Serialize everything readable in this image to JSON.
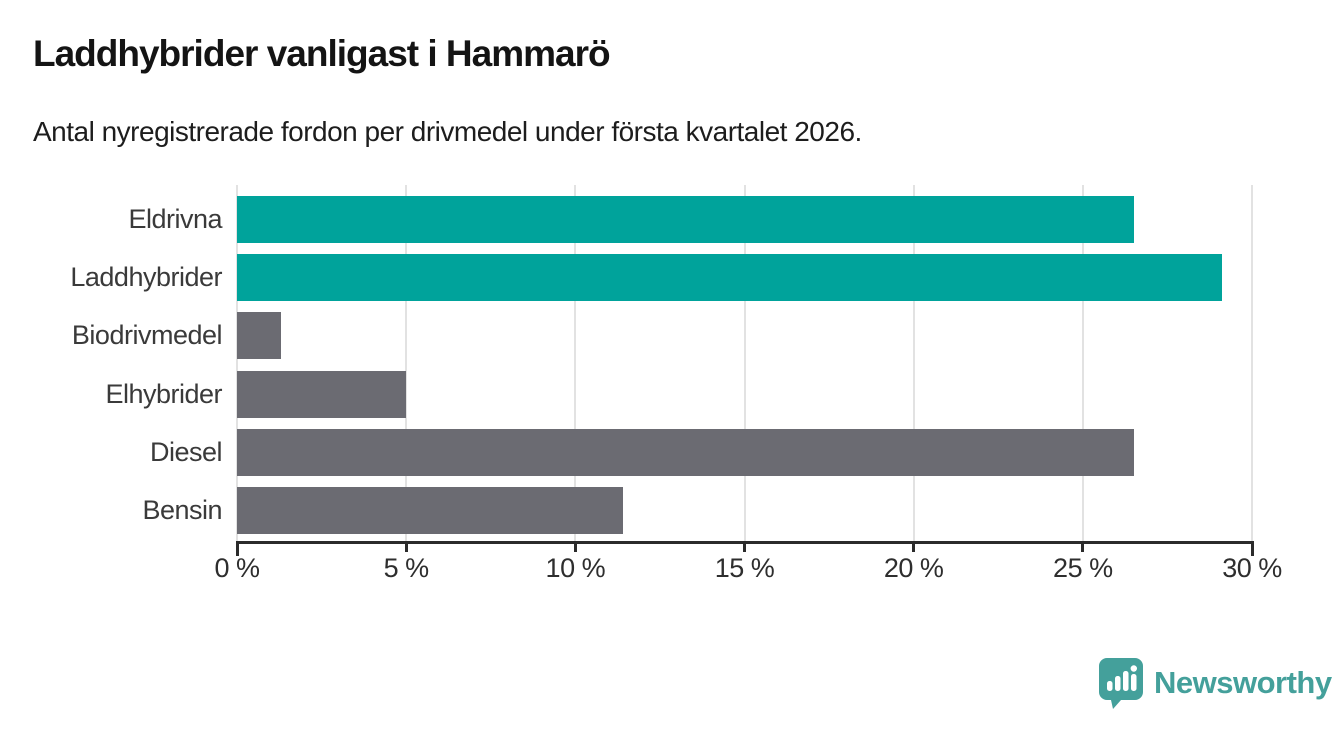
{
  "header": {
    "title": "Laddhybrider vanligast i Hammarö",
    "subtitle": "Antal nyregistrerade fordon per drivmedel under första kvartalet 2026."
  },
  "chart_data": {
    "type": "bar",
    "orientation": "horizontal",
    "title": "Laddhybrider vanligast i Hammarö",
    "subtitle": "Antal nyregistrerade fordon per drivmedel under första kvartalet 2026.",
    "categories": [
      "Eldrivna",
      "Laddhybrider",
      "Biodrivmedel",
      "Elhybrider",
      "Diesel",
      "Bensin"
    ],
    "values": [
      26.5,
      29.1,
      1.3,
      5.0,
      26.5,
      11.4
    ],
    "unit": "%",
    "xlim": [
      0,
      30
    ],
    "x_ticks": [
      0,
      5,
      10,
      15,
      20,
      25,
      30
    ],
    "x_tick_labels": [
      "0 %",
      "5 %",
      "10 %",
      "15 %",
      "20 %",
      "25 %",
      "30 %"
    ],
    "grid": true,
    "legend": false,
    "colors": {
      "highlight": "#00A39B",
      "default": "#6B6B72",
      "bar_colors": [
        "#00A39B",
        "#00A39B",
        "#6B6B72",
        "#6B6B72",
        "#6B6B72",
        "#6B6B72"
      ]
    }
  },
  "footer": {
    "brand": "Newsworthy",
    "brand_color": "#44a09b",
    "logo_icon": "newsworthy-speech-bubble-chart-icon"
  }
}
